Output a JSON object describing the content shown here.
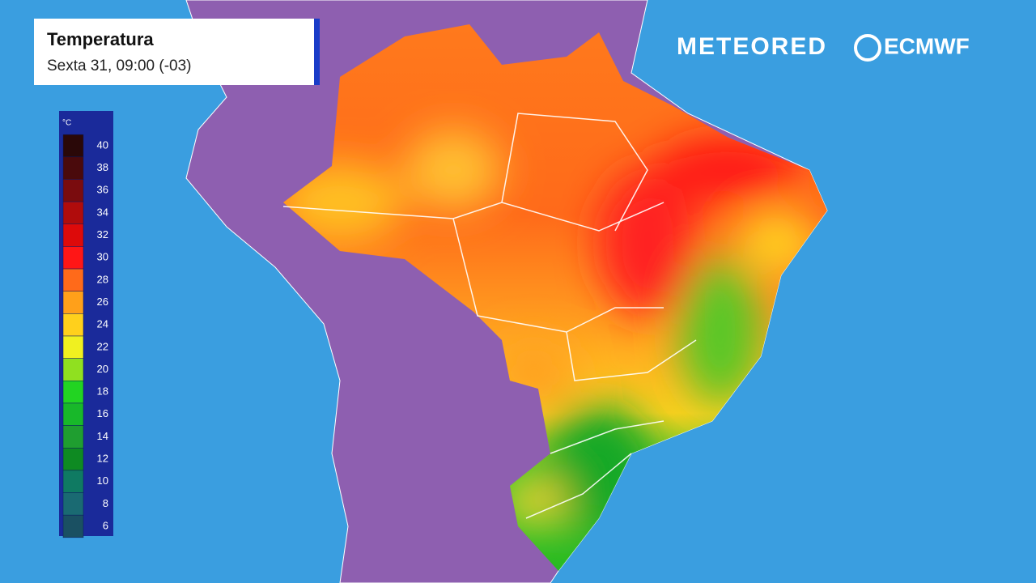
{
  "header": {
    "title": "Temperatura",
    "subtitle": "Sexta 31, 09:00 (-03)"
  },
  "legend": {
    "unit": "°C",
    "stops": [
      {
        "value": 40,
        "color": "#2a0808"
      },
      {
        "value": 38,
        "color": "#4a0a0c"
      },
      {
        "value": 36,
        "color": "#7a0c0e"
      },
      {
        "value": 34,
        "color": "#b00c0c"
      },
      {
        "value": 32,
        "color": "#dd0a0a"
      },
      {
        "value": 30,
        "color": "#ff1616"
      },
      {
        "value": 28,
        "color": "#ff6a1a"
      },
      {
        "value": 26,
        "color": "#ffa01a"
      },
      {
        "value": 24,
        "color": "#ffd01c"
      },
      {
        "value": 22,
        "color": "#f0f020"
      },
      {
        "value": 20,
        "color": "#90e020"
      },
      {
        "value": 18,
        "color": "#22d422"
      },
      {
        "value": 16,
        "color": "#18b82a"
      },
      {
        "value": 14,
        "color": "#1f9e30"
      },
      {
        "value": 12,
        "color": "#0e8a22"
      },
      {
        "value": 10,
        "color": "#0f7a62"
      },
      {
        "value": 8,
        "color": "#1a6a72"
      },
      {
        "value": 6,
        "color": "#1a5062"
      }
    ]
  },
  "logos": {
    "brand": "METEORED",
    "partner": "ECMWF"
  }
}
